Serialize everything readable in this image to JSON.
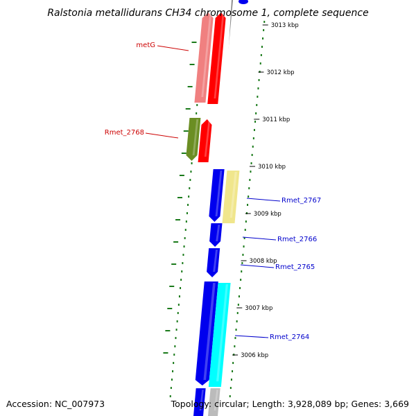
{
  "title": "Ralstonia metallidurans CH34 chromosome 1, complete sequence",
  "accession_text": "Accession: NC_007973",
  "topology_text": "Topology: circular; Length: 3,928,089 bp; Genes: 3,669",
  "ticks": [
    "3013 kbp",
    "3012 kbp",
    "3011 kbp",
    "3010 kbp",
    "3009 kbp",
    "3008 kbp",
    "3007 kbp",
    "3006 kbp"
  ],
  "gene_labels": [
    {
      "name": "metG",
      "color": "#cc0000"
    },
    {
      "name": "Rmet_2768",
      "color": "#cc0000"
    },
    {
      "name": "Rmet_2767",
      "color": "#0000cc"
    },
    {
      "name": "Rmet_2766",
      "color": "#0000cc"
    },
    {
      "name": "Rmet_2765",
      "color": "#0000cc"
    },
    {
      "name": "Rmet_2764",
      "color": "#0000cc"
    }
  ],
  "colors": {
    "backbone": "#888888",
    "dots": "#1a7a1a",
    "forward_genes": "#0000ee",
    "reverse_genes": "#ff0000",
    "pink": "#f08080",
    "olive": "#6b8e23",
    "khaki": "#f0e68c",
    "cyan": "#00ffff"
  }
}
